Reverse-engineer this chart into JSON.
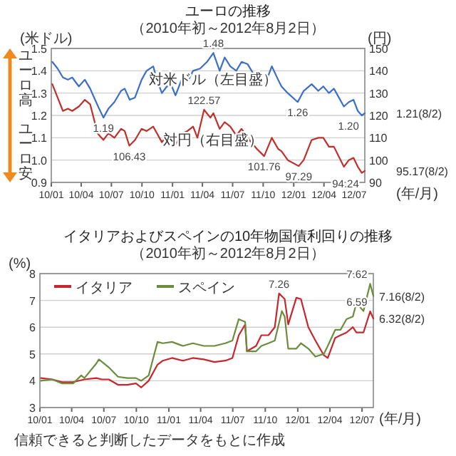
{
  "chart_data": [
    {
      "type": "line",
      "title": "ユーロの推移",
      "subtitle": "（2010年初～2012年8月2日）",
      "xlabel": "(年/月)",
      "ylabel": "(米ドル)",
      "y2label": "(円)",
      "xlim": [
        "2010-01-01",
        "2012-08-02"
      ],
      "xticks": [
        {
          "value": "2010-01",
          "label": "10/01"
        },
        {
          "value": "2010-04",
          "label": "10/04"
        },
        {
          "value": "2010-07",
          "label": "10/07"
        },
        {
          "value": "2010-10",
          "label": "10/10"
        },
        {
          "value": "2011-01",
          "label": "11/01"
        },
        {
          "value": "2011-04",
          "label": "11/04"
        },
        {
          "value": "2011-07",
          "label": "11/07"
        },
        {
          "value": "2011-10",
          "label": "11/10"
        },
        {
          "value": "2012-01",
          "label": "12/01"
        },
        {
          "value": "2012-04",
          "label": "12/04"
        },
        {
          "value": "2012-07",
          "label": "12/07"
        }
      ],
      "ylim": [
        0.9,
        1.5
      ],
      "yticks": [
        0.9,
        {
          "value": 1.0,
          "label": "1.0"
        },
        1.1,
        1.2,
        1.3,
        1.4,
        1.5
      ],
      "y2lim": [
        90,
        150
      ],
      "y2ticks": [
        90,
        100,
        110,
        120,
        130,
        140,
        150
      ],
      "grid": "y",
      "legend": false,
      "series": [
        {
          "name": "対米ドル（左目盛）",
          "color": "#3b6fc6",
          "x": [
            "2010-01-04",
            "2010-01-20",
            "2010-02-05",
            "2010-02-20",
            "2010-03-05",
            "2010-03-25",
            "2010-04-12",
            "2010-04-28",
            "2010-05-10",
            "2010-05-25",
            "2010-06-07",
            "2010-06-22",
            "2010-07-10",
            "2010-07-30",
            "2010-08-10",
            "2010-08-25",
            "2010-09-10",
            "2010-09-30",
            "2010-10-15",
            "2010-11-04",
            "2010-11-15",
            "2010-11-30",
            "2010-12-15",
            "2010-12-30",
            "2011-01-10",
            "2011-01-31",
            "2011-02-15",
            "2011-03-04",
            "2011-03-25",
            "2011-04-15",
            "2011-05-04",
            "2011-05-23",
            "2011-06-07",
            "2011-06-24",
            "2011-07-12",
            "2011-07-28",
            "2011-08-15",
            "2011-09-12",
            "2011-10-04",
            "2011-10-27",
            "2011-11-15",
            "2011-11-25",
            "2011-12-14",
            "2012-01-13",
            "2012-01-31",
            "2012-02-24",
            "2012-03-15",
            "2012-03-30",
            "2012-04-16",
            "2012-05-01",
            "2012-05-31",
            "2012-06-15",
            "2012-06-29",
            "2012-07-12",
            "2012-07-24",
            "2012-08-02"
          ],
          "values": [
            1.44,
            1.41,
            1.37,
            1.36,
            1.37,
            1.33,
            1.36,
            1.32,
            1.28,
            1.23,
            1.19,
            1.23,
            1.26,
            1.31,
            1.32,
            1.27,
            1.28,
            1.36,
            1.4,
            1.42,
            1.36,
            1.3,
            1.33,
            1.33,
            1.29,
            1.37,
            1.35,
            1.4,
            1.41,
            1.44,
            1.48,
            1.4,
            1.46,
            1.42,
            1.4,
            1.44,
            1.43,
            1.36,
            1.33,
            1.42,
            1.36,
            1.33,
            1.3,
            1.26,
            1.31,
            1.34,
            1.31,
            1.33,
            1.3,
            1.32,
            1.24,
            1.26,
            1.27,
            1.22,
            1.2,
            1.21
          ]
        },
        {
          "name": "対円（右目盛）",
          "color": "#c0302a",
          "axis": "y2",
          "x": [
            "2010-01-04",
            "2010-01-20",
            "2010-02-05",
            "2010-02-20",
            "2010-03-05",
            "2010-03-25",
            "2010-04-12",
            "2010-04-28",
            "2010-05-10",
            "2010-05-20",
            "2010-06-07",
            "2010-06-22",
            "2010-07-10",
            "2010-07-30",
            "2010-08-10",
            "2010-08-24",
            "2010-09-10",
            "2010-09-30",
            "2010-10-15",
            "2010-11-04",
            "2010-11-15",
            "2010-11-30",
            "2010-12-15",
            "2010-12-30",
            "2011-01-10",
            "2011-01-31",
            "2011-02-15",
            "2011-03-04",
            "2011-03-17",
            "2011-04-06",
            "2011-04-25",
            "2011-05-04",
            "2011-05-23",
            "2011-06-07",
            "2011-06-24",
            "2011-07-12",
            "2011-07-28",
            "2011-08-15",
            "2011-09-12",
            "2011-10-04",
            "2011-10-27",
            "2011-11-15",
            "2011-11-25",
            "2011-12-14",
            "2012-01-16",
            "2012-01-31",
            "2012-02-24",
            "2012-03-15",
            "2012-03-30",
            "2012-04-16",
            "2012-05-01",
            "2012-05-31",
            "2012-06-15",
            "2012-06-29",
            "2012-07-12",
            "2012-07-24",
            "2012-08-02"
          ],
          "values": [
            134,
            128,
            122,
            123,
            122,
            124,
            127,
            125,
            118,
            112,
            109,
            112,
            110,
            114,
            113,
            106.43,
            109,
            114,
            113,
            115,
            112,
            108,
            111,
            108,
            107,
            112,
            113,
            115,
            110,
            122.57,
            119,
            121,
            114,
            117,
            115,
            111,
            114,
            110,
            105,
            101.76,
            110,
            105,
            104,
            100,
            97.29,
            100,
            109,
            110,
            110,
            106,
            106,
            97,
            100,
            101,
            97,
            94.24,
            95.17
          ]
        }
      ],
      "annotations": [
        "ユーロ高",
        "ユーロ安",
        {
          "text": "1.48",
          "x": "2011-05-04",
          "y": 1.48
        },
        {
          "text": "1.19",
          "x": "2010-06-07",
          "y": 1.19
        },
        {
          "text": "1.26",
          "x": "2012-01-13",
          "y": 1.26
        },
        {
          "text": "1.20",
          "x": "2012-07-24",
          "y": 1.2
        },
        {
          "text": "1.21(8/2)",
          "x": "2012-08-02",
          "y": 1.21
        },
        "122.57",
        "106.43",
        "101.76",
        "97.29",
        "94.24",
        "95.17(8/2)"
      ]
    },
    {
      "type": "line",
      "title": "イタリアおよびスペインの10年物国債利回りの推移",
      "subtitle": "（2010年初～2012年8月2日）",
      "xlabel": "(年/月)",
      "ylabel": "(%)",
      "xlim": [
        "2010-01-01",
        "2012-08-02"
      ],
      "xticks": [
        {
          "value": "2010-01",
          "label": "10/01"
        },
        {
          "value": "2010-04",
          "label": "10/04"
        },
        {
          "value": "2010-07",
          "label": "10/07"
        },
        {
          "value": "2010-10",
          "label": "10/10"
        },
        {
          "value": "2011-01",
          "label": "11/01"
        },
        {
          "value": "2011-04",
          "label": "11/04"
        },
        {
          "value": "2011-07",
          "label": "11/07"
        },
        {
          "value": "2011-10",
          "label": "11/10"
        },
        {
          "value": "2012-01",
          "label": "12/01"
        },
        {
          "value": "2012-04",
          "label": "12/04"
        },
        {
          "value": "2012-07",
          "label": "12/07"
        }
      ],
      "ylim": [
        3,
        8
      ],
      "yticks": [
        3,
        4,
        5,
        6,
        7,
        8
      ],
      "grid": "y",
      "legend": "top left",
      "series": [
        {
          "name": "イタリア",
          "color": "#c8262c",
          "x": [
            "2010-01-04",
            "2010-02-05",
            "2010-03-05",
            "2010-04-05",
            "2010-05-07",
            "2010-06-10",
            "2010-06-25",
            "2010-07-15",
            "2010-08-10",
            "2010-09-05",
            "2010-09-30",
            "2010-10-15",
            "2010-11-05",
            "2010-11-30",
            "2010-12-15",
            "2011-01-10",
            "2011-02-10",
            "2011-03-10",
            "2011-04-10",
            "2011-05-10",
            "2011-06-10",
            "2011-06-30",
            "2011-07-18",
            "2011-08-05",
            "2011-08-10",
            "2011-09-05",
            "2011-09-20",
            "2011-10-10",
            "2011-10-28",
            "2011-11-09",
            "2011-11-25",
            "2011-12-05",
            "2011-12-28",
            "2012-01-10",
            "2012-01-31",
            "2012-02-20",
            "2012-03-15",
            "2012-03-26",
            "2012-04-16",
            "2012-05-01",
            "2012-05-18",
            "2012-06-05",
            "2012-06-15",
            "2012-07-05",
            "2012-07-24",
            "2012-08-02"
          ],
          "values": [
            4.1,
            4.05,
            3.95,
            3.95,
            4.05,
            4.1,
            4.05,
            4.05,
            3.85,
            3.85,
            3.9,
            3.75,
            4.0,
            4.6,
            4.75,
            4.85,
            4.75,
            4.85,
            4.8,
            4.7,
            4.75,
            4.85,
            5.7,
            6.1,
            5.1,
            5.3,
            5.7,
            5.7,
            6.0,
            7.26,
            7.05,
            6.1,
            7.1,
            7.05,
            6.0,
            5.5,
            4.95,
            4.85,
            5.6,
            5.7,
            5.8,
            6.0,
            5.8,
            5.8,
            6.59,
            6.32
          ]
        },
        {
          "name": "スペイン",
          "color": "#6b8c3c",
          "x": [
            "2010-01-04",
            "2010-02-05",
            "2010-03-05",
            "2010-04-05",
            "2010-04-28",
            "2010-05-07",
            "2010-06-10",
            "2010-06-17",
            "2010-07-15",
            "2010-08-10",
            "2010-09-05",
            "2010-09-30",
            "2010-10-15",
            "2010-11-05",
            "2010-11-30",
            "2010-12-15",
            "2011-01-10",
            "2011-02-10",
            "2011-03-10",
            "2011-04-10",
            "2011-05-10",
            "2011-06-10",
            "2011-06-30",
            "2011-07-18",
            "2011-08-05",
            "2011-08-10",
            "2011-09-05",
            "2011-09-20",
            "2011-10-10",
            "2011-10-28",
            "2011-11-17",
            "2011-11-25",
            "2011-12-05",
            "2011-12-28",
            "2012-01-10",
            "2012-01-31",
            "2012-02-20",
            "2012-03-15",
            "2012-03-26",
            "2012-04-16",
            "2012-05-01",
            "2012-05-18",
            "2012-06-05",
            "2012-06-15",
            "2012-07-05",
            "2012-07-24",
            "2012-08-02"
          ],
          "values": [
            4.0,
            4.05,
            3.9,
            3.9,
            4.2,
            4.1,
            4.65,
            4.8,
            4.5,
            4.15,
            4.1,
            4.1,
            4.0,
            4.2,
            5.45,
            5.4,
            5.45,
            5.3,
            5.4,
            5.3,
            5.3,
            5.4,
            5.5,
            6.3,
            6.2,
            5.1,
            5.1,
            5.3,
            5.4,
            5.5,
            6.6,
            6.4,
            5.2,
            5.2,
            5.4,
            5.2,
            4.9,
            5.0,
            5.3,
            5.9,
            5.9,
            6.3,
            6.4,
            6.9,
            6.6,
            7.62,
            7.16
          ]
        }
      ],
      "annotations": [
        {
          "text": "7.26",
          "x": "2011-11-09",
          "y": 7.26
        },
        {
          "text": "6.59",
          "x": "2012-07-24",
          "y": 6.59
        },
        {
          "text": "7.62",
          "x": "2012-07-24",
          "y": 7.62
        },
        {
          "text": "7.16(8/2)",
          "x": "2012-08-02",
          "y": 7.16
        },
        {
          "text": "6.32(8/2)",
          "x": "2012-08-02",
          "y": 6.32
        },
        "信頼できると判断したデータをもとに作成"
      ]
    }
  ]
}
